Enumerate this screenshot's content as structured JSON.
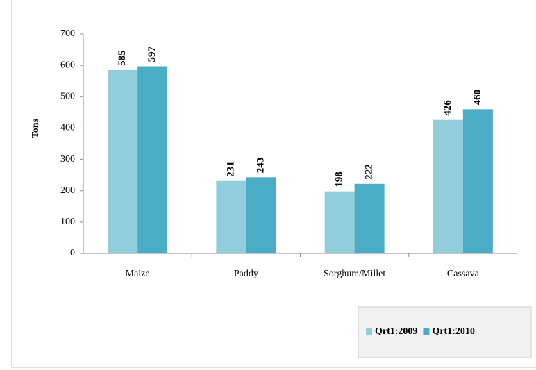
{
  "chart_data": {
    "type": "bar",
    "y_label": "Tons",
    "categories": [
      "Maize",
      "Paddy",
      "Sorghum/Millet",
      "Cassava"
    ],
    "series": [
      {
        "name": "Qrt1:2009",
        "color": "#92cddc",
        "values": [
          585,
          231,
          198,
          426
        ]
      },
      {
        "name": "Qrt1:2010",
        "color": "#4bacc6",
        "values": [
          597,
          243,
          222,
          460
        ]
      }
    ],
    "ylim": [
      0,
      700
    ],
    "yticks": [
      0,
      100,
      200,
      300,
      400,
      500,
      600,
      700
    ],
    "grid": false,
    "legend": "bottom-right"
  }
}
